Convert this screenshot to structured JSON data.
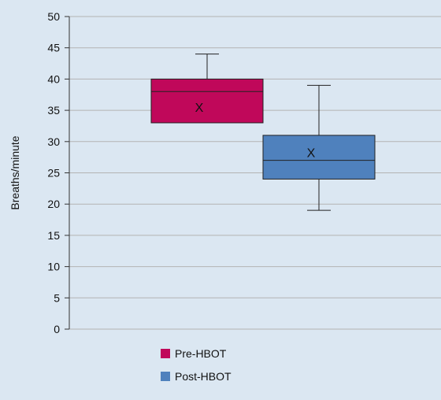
{
  "chart_data": {
    "type": "box",
    "title": "",
    "xlabel": "",
    "ylabel": "Breaths/minute",
    "ylim": [
      0,
      50
    ],
    "y_ticks": [
      0,
      5,
      10,
      15,
      20,
      25,
      30,
      35,
      40,
      45,
      50
    ],
    "y_tick_labels": [
      "0",
      "5",
      "10",
      "15",
      "20",
      "25",
      "30",
      "35",
      "40",
      "45",
      "50"
    ],
    "grid": true,
    "legend_position": "bottom",
    "mean_marker": "X",
    "series": [
      {
        "name": "Pre-HBOT",
        "color": "#c0085a",
        "min": 33,
        "q1": 33,
        "median": 38,
        "q3": 40,
        "max": 44,
        "mean": 35.5
      },
      {
        "name": "Post-HBOT",
        "color": "#4f81bd",
        "min": 19,
        "q1": 24,
        "median": 27,
        "q3": 31,
        "max": 39,
        "mean": 28.3
      }
    ]
  }
}
